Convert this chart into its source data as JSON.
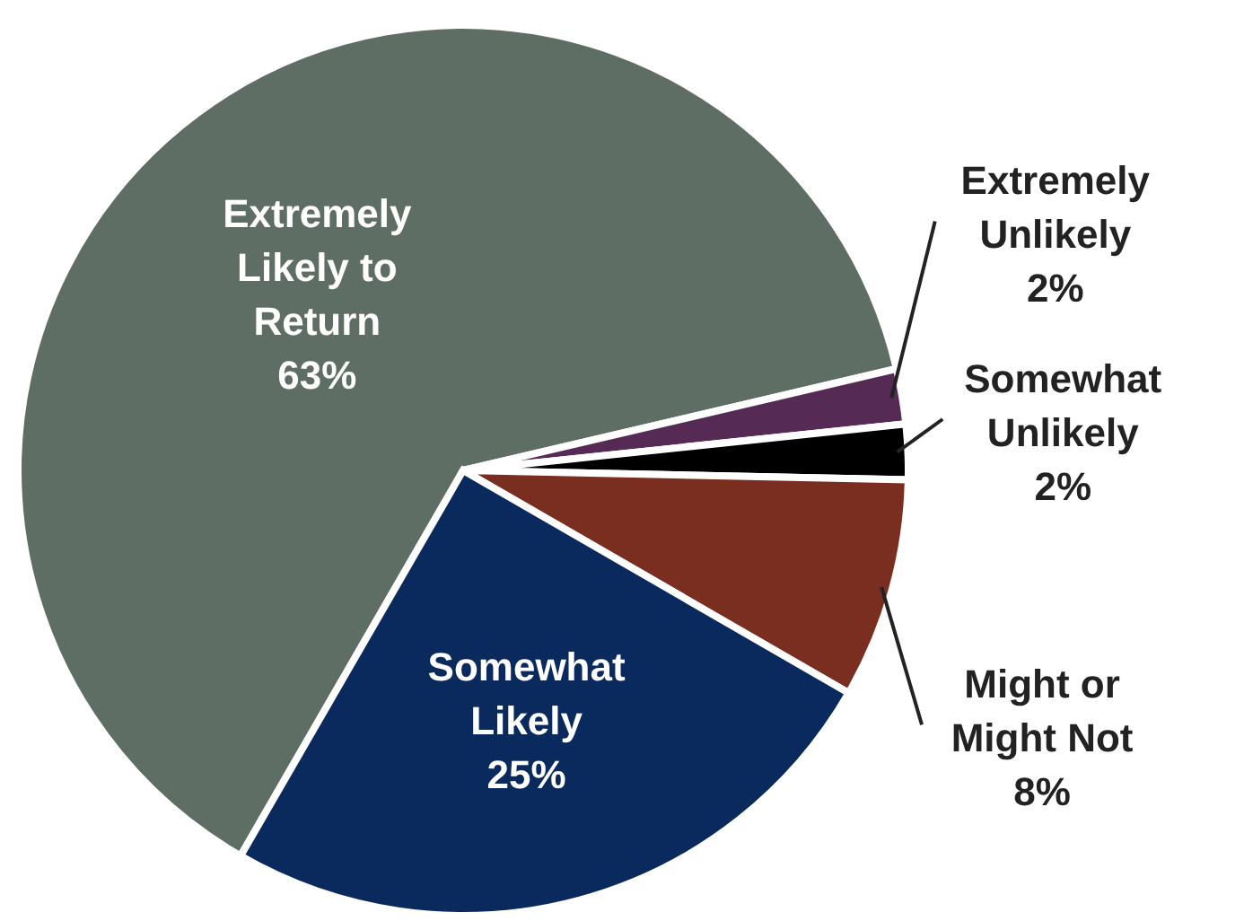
{
  "chart_data": {
    "type": "pie",
    "categories": [
      "Extremely Likely to Return",
      "Extremely Unlikely",
      "Somewhat Unlikely",
      "Might or Might Not",
      "Somewhat Likely"
    ],
    "values": [
      63,
      2,
      2,
      8,
      25
    ],
    "colors": [
      "#5f6e64",
      "#552a55",
      "#000000",
      "#7a2e20",
      "#0a2a5e"
    ],
    "value_labels": [
      "63%",
      "2%",
      "2%",
      "8%",
      "25%"
    ]
  }
}
